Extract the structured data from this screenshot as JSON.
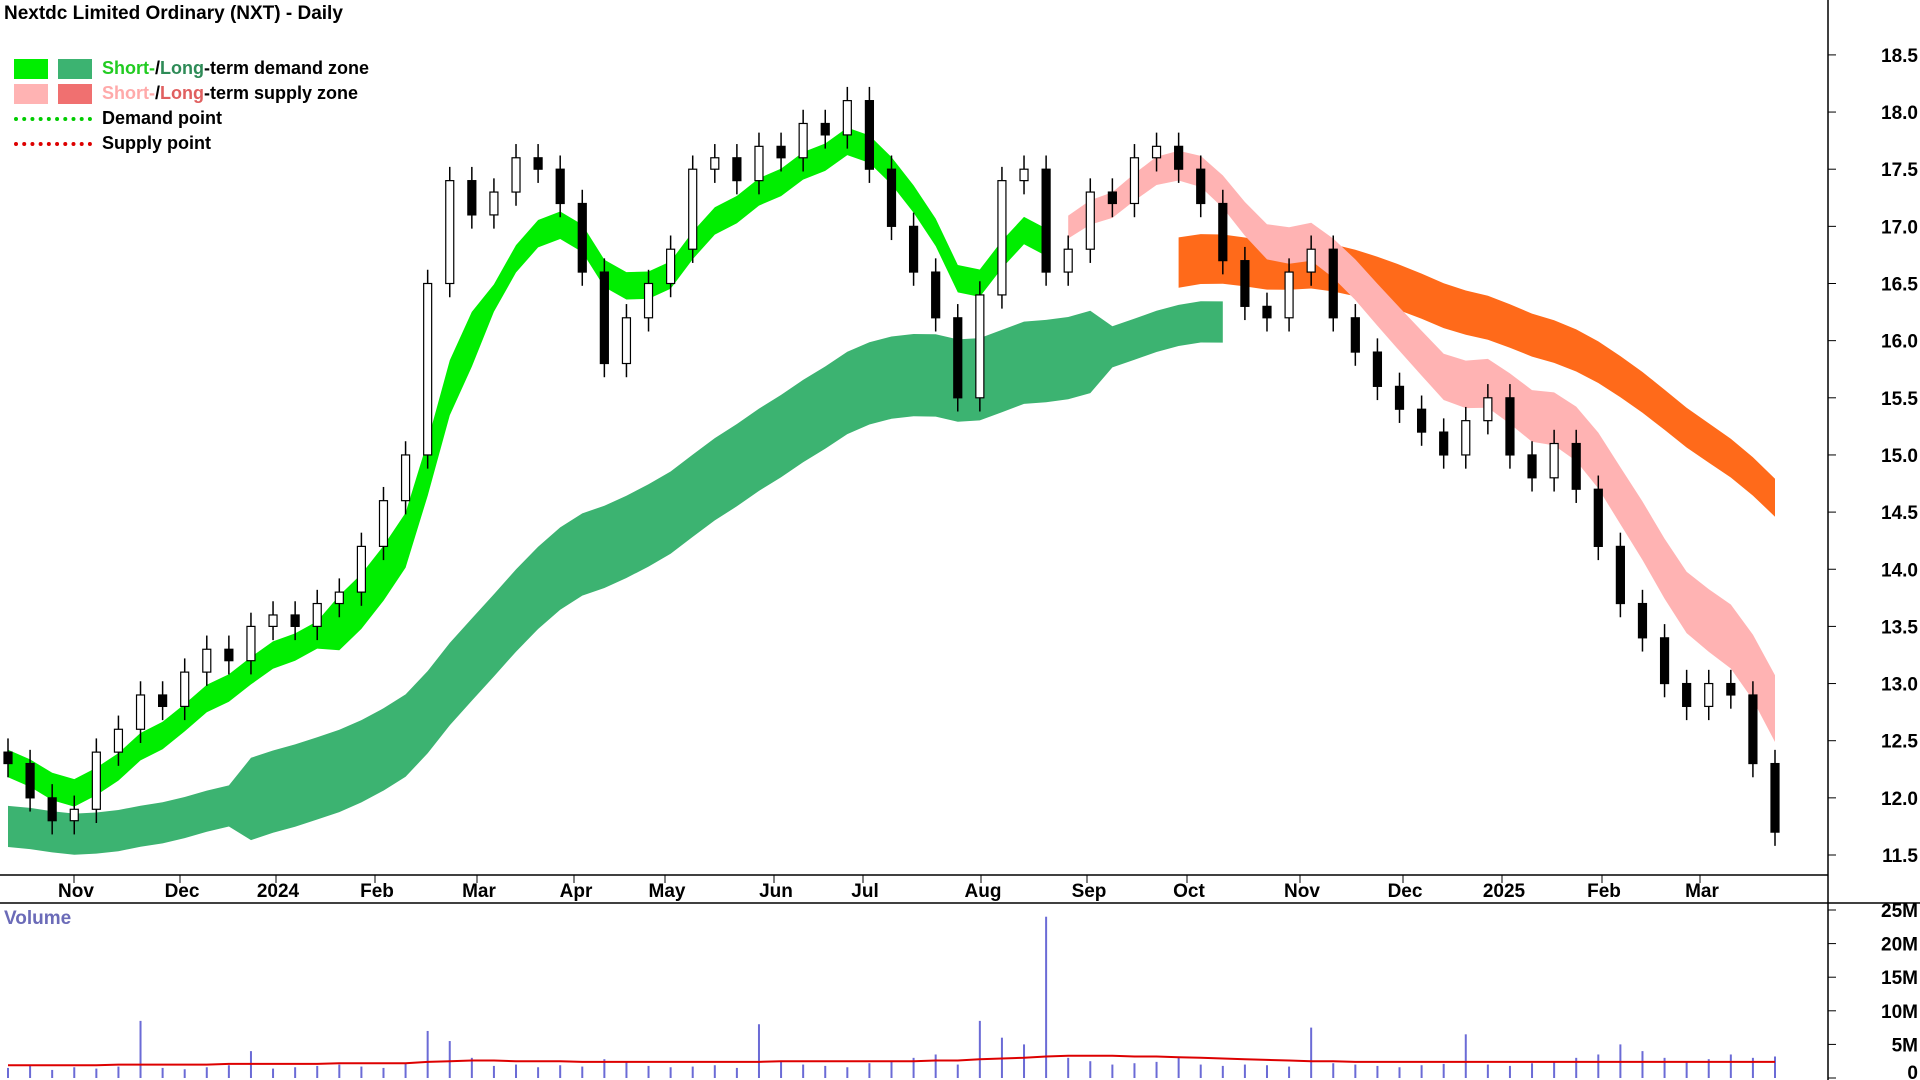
{
  "title": "Nextdc Limited Ordinary (NXT) - Daily",
  "legend": {
    "demand_short": "Short-",
    "demand_sep": " / ",
    "demand_long": "Long",
    "demand_suffix": "-term demand zone",
    "supply_short": "Short-",
    "supply_sep": " / ",
    "supply_long": "Long",
    "supply_suffix": "-term supply zone",
    "demand_point": "Demand point",
    "supply_point": "Supply point"
  },
  "volume_label": "Volume",
  "colors": {
    "short_demand": "#00ee00",
    "long_demand": "#3cb371",
    "short_supply": "#ffb3b3",
    "long_supply": "#f07070",
    "crossover": "#ff6a1a",
    "demand_point": "#00cc00",
    "supply_point": "#dd0000",
    "volume_bar": "#6b6bd6",
    "volume_avg": "#dd0000",
    "legend_short_demand_text": "#22cc22",
    "legend_long_demand_text": "#2e8b57",
    "legend_short_supply_text": "#ffaaaa",
    "legend_long_supply_text": "#e06060"
  },
  "chart_data": {
    "type": "candlestick",
    "title": "Nextdc Limited Ordinary (NXT) - Daily",
    "x_tick_labels": [
      "Nov",
      "Dec",
      "2024",
      "Feb",
      "Mar",
      "Apr",
      "May",
      "Jun",
      "Jul",
      "Aug",
      "Sep",
      "Oct",
      "Nov",
      "Dec",
      "2025",
      "Feb",
      "Mar"
    ],
    "y_tick_labels": [
      "18.5",
      "18.0",
      "17.5",
      "17.0",
      "16.5",
      "16.0",
      "15.5",
      "15.0",
      "14.5",
      "14.0",
      "13.5",
      "13.0",
      "12.5",
      "12.0",
      "11.5"
    ],
    "ylim": [
      11.3,
      18.8
    ],
    "price_series": [
      {
        "name": "Close",
        "values": [
          12.3,
          12.0,
          11.8,
          11.9,
          12.4,
          12.6,
          12.9,
          12.8,
          13.1,
          13.3,
          13.2,
          13.5,
          13.6,
          13.5,
          13.7,
          13.8,
          14.2,
          14.6,
          15.0,
          16.5,
          17.4,
          17.1,
          17.3,
          17.6,
          17.5,
          17.2,
          16.6,
          15.8,
          16.2,
          16.5,
          16.8,
          17.5,
          17.6,
          17.4,
          17.7,
          17.6,
          17.9,
          17.8,
          18.1,
          17.5,
          17.0,
          16.6,
          16.2,
          15.5,
          16.4,
          17.4,
          17.5,
          16.6,
          16.8,
          17.3,
          17.2,
          17.6,
          17.7,
          17.5,
          17.2,
          16.7,
          16.3,
          16.2,
          16.6,
          16.8,
          16.2,
          15.9,
          15.6,
          15.4,
          15.2,
          15.0,
          15.3,
          15.5,
          15.0,
          14.8,
          15.1,
          14.7,
          14.2,
          13.7,
          13.4,
          13.0,
          12.8,
          13.0,
          12.9,
          12.3,
          11.7
        ]
      }
    ],
    "zones": [
      {
        "name": "Short-term demand zone"
      },
      {
        "name": "Long-term demand zone"
      },
      {
        "name": "Short-term supply zone"
      },
      {
        "name": "Long-term supply zone"
      }
    ],
    "volume": {
      "y_tick_labels": [
        "25M",
        "20M",
        "15M",
        "10M",
        "5M",
        "0"
      ],
      "ylim": [
        0,
        25
      ],
      "values": [
        1.5,
        1.8,
        1.2,
        1.6,
        1.4,
        1.7,
        8.5,
        1.5,
        1.3,
        1.6,
        1.9,
        4.0,
        1.4,
        1.6,
        1.8,
        2.0,
        1.7,
        1.5,
        2.2,
        7.0,
        5.5,
        3.0,
        1.8,
        2.0,
        1.6,
        1.9,
        1.7,
        2.8,
        2.4,
        1.8,
        1.6,
        1.7,
        1.9,
        1.5,
        8.0,
        2.5,
        2.0,
        1.8,
        1.6,
        2.2,
        2.5,
        3.0,
        3.5,
        2.0,
        8.5,
        6.0,
        5.0,
        24.0,
        3.0,
        2.5,
        2.0,
        2.2,
        2.4,
        3.0,
        2.0,
        1.8,
        2.0,
        1.9,
        1.7,
        7.5,
        2.2,
        2.0,
        1.8,
        1.6,
        1.9,
        2.1,
        6.5,
        2.0,
        1.8,
        2.2,
        2.4,
        3.0,
        3.5,
        5.0,
        4.0,
        3.0,
        2.5,
        2.8,
        3.5,
        3.0,
        3.2
      ],
      "average_values": [
        1.9,
        1.9,
        1.9,
        1.9,
        1.9,
        2.0,
        2.0,
        2.0,
        2.0,
        2.0,
        2.1,
        2.1,
        2.1,
        2.1,
        2.1,
        2.2,
        2.2,
        2.2,
        2.2,
        2.4,
        2.5,
        2.6,
        2.6,
        2.5,
        2.5,
        2.5,
        2.4,
        2.4,
        2.4,
        2.4,
        2.4,
        2.4,
        2.4,
        2.4,
        2.4,
        2.5,
        2.5,
        2.5,
        2.5,
        2.5,
        2.5,
        2.5,
        2.6,
        2.6,
        2.8,
        2.9,
        3.0,
        3.2,
        3.3,
        3.3,
        3.3,
        3.2,
        3.2,
        3.1,
        3.0,
        2.9,
        2.8,
        2.7,
        2.6,
        2.5,
        2.5,
        2.4,
        2.4,
        2.4,
        2.4,
        2.4,
        2.4,
        2.4,
        2.4,
        2.4,
        2.4,
        2.4,
        2.4,
        2.4,
        2.4,
        2.4,
        2.4,
        2.4,
        2.4,
        2.4,
        2.4
      ]
    }
  }
}
